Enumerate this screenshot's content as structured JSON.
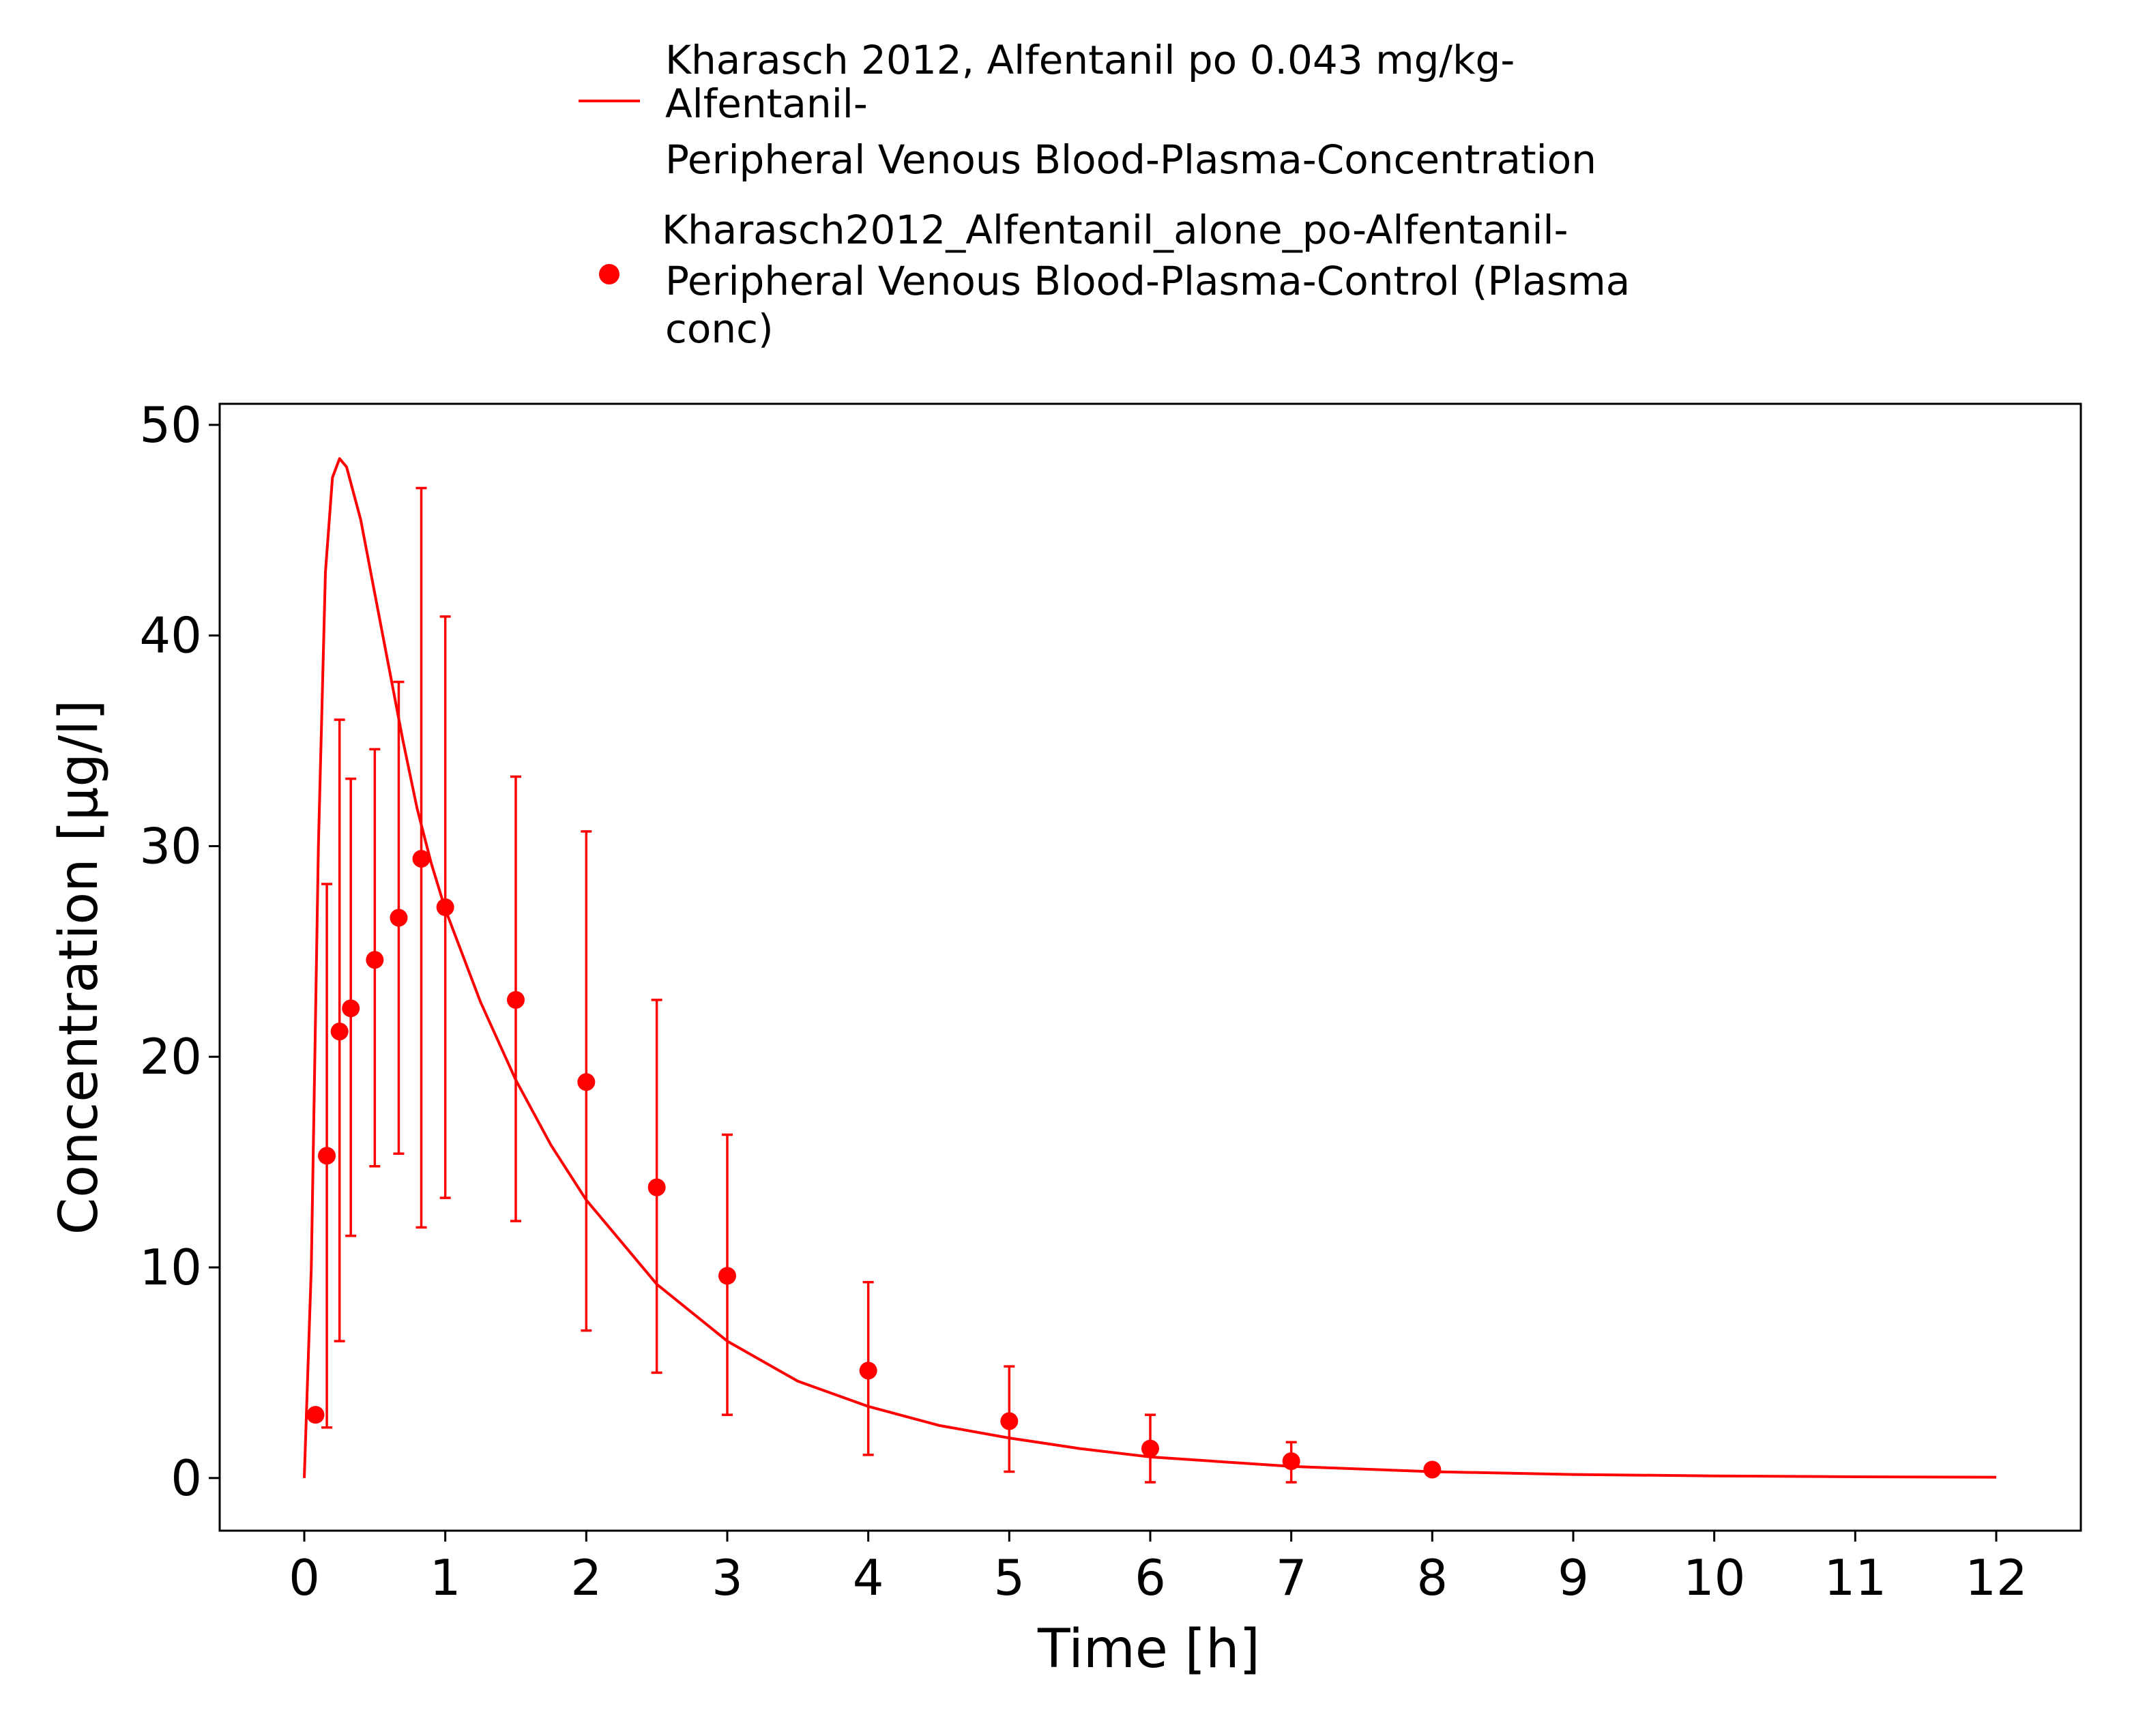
{
  "chart_data": {
    "type": "line",
    "xlabel": "Time [h]",
    "ylabel": "Concentration [µg/l]",
    "xlim": [
      -0.6,
      12.6
    ],
    "ylim": [
      -2.5,
      51
    ],
    "x_ticks": [
      "0",
      "1",
      "2",
      "3",
      "4",
      "5",
      "6",
      "7",
      "8",
      "9",
      "10",
      "11",
      "12"
    ],
    "y_ticks": [
      "0",
      "10",
      "20",
      "30",
      "40",
      "50"
    ],
    "legend_position": "top",
    "grid": false,
    "series": [
      {
        "name_lines": [
          "Kharasch 2012, Alfentanil po 0.043 mg/kg-",
          "Alfentanil-",
          "Peripheral Venous Blood-Plasma-Concentration"
        ],
        "kind": "line",
        "color": "#ff0000",
        "x": [
          0,
          0.05,
          0.1,
          0.15,
          0.2,
          0.25,
          0.3,
          0.4,
          0.5,
          0.6,
          0.7,
          0.8,
          0.9,
          1.0,
          1.25,
          1.5,
          1.75,
          2.0,
          2.5,
          3.0,
          3.5,
          4.0,
          4.5,
          5.0,
          5.5,
          6.0,
          7.0,
          8.0,
          9.0,
          10.0,
          11.0,
          12.0
        ],
        "y": [
          0,
          10,
          30,
          43,
          47.5,
          48.4,
          48,
          45.5,
          42,
          38.5,
          35,
          31.8,
          29.2,
          27,
          22.6,
          18.9,
          15.8,
          13.2,
          9.2,
          6.5,
          4.6,
          3.4,
          2.5,
          1.9,
          1.4,
          1.0,
          0.55,
          0.3,
          0.17,
          0.1,
          0.06,
          0.04
        ]
      },
      {
        "name_lines": [
          "Kharasch2012_Alfentanil_alone_po-Alfentanil-",
          "Peripheral Venous Blood-Plasma-Control (Plasma",
          "conc)"
        ],
        "kind": "points_with_error_bars",
        "color": "#ff0000",
        "x": [
          0.08,
          0.16,
          0.25,
          0.33,
          0.5,
          0.67,
          0.83,
          1.0,
          1.5,
          2.0,
          2.5,
          3.0,
          4.0,
          5.0,
          6.0,
          7.0,
          8.0
        ],
        "y": [
          3.0,
          15.3,
          21.2,
          22.3,
          24.6,
          26.6,
          29.4,
          27.1,
          22.7,
          18.8,
          13.8,
          9.6,
          5.1,
          2.7,
          1.4,
          0.8,
          0.4
        ],
        "y_low": [
          null,
          2.4,
          6.5,
          11.5,
          14.8,
          15.4,
          11.9,
          13.3,
          12.2,
          7.0,
          5.0,
          3.0,
          1.1,
          0.3,
          -0.2,
          -0.2,
          null
        ],
        "y_high": [
          null,
          28.2,
          36.0,
          33.2,
          34.6,
          37.8,
          47.0,
          40.9,
          33.3,
          30.7,
          22.7,
          16.3,
          9.3,
          5.3,
          3.0,
          1.7,
          null
        ]
      }
    ]
  }
}
